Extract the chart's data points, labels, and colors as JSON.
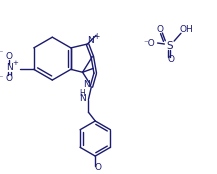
{
  "bg": "#ffffff",
  "lc": "#1a1a6e",
  "lw": 1.0,
  "figsize": [
    2.17,
    1.74
  ],
  "dpi": 100,
  "xlim": [
    0,
    217
  ],
  "ylim": [
    0,
    174
  ]
}
